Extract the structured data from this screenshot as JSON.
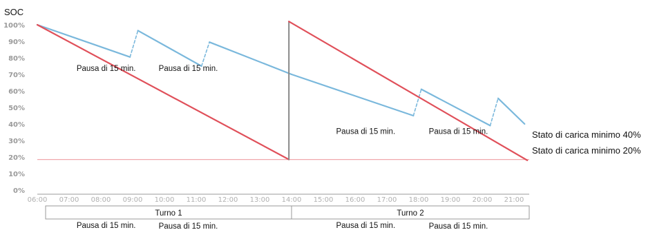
{
  "chart_data": {
    "type": "line",
    "title": "",
    "ylabel": "SOC",
    "xlabel": "",
    "ylim": [
      0,
      100
    ],
    "yticks": [
      "0%",
      "10%",
      "20%",
      "30%",
      "40%",
      "50%",
      "60%",
      "70%",
      "80%",
      "90%",
      "100%"
    ],
    "xticks": [
      "06:00",
      "07:00",
      "08:00",
      "09:00",
      "10:00",
      "11:00",
      "12:00",
      "13:00",
      "14:00",
      "15:00",
      "16:00",
      "17:00",
      "18:00",
      "19:00",
      "20:00",
      "21:00"
    ],
    "x_range": [
      "06:00",
      "21:30"
    ],
    "colors": {
      "with_pauses": "#7ab8dc",
      "continuous": "#e0505a",
      "min_line": "#f0a8ac",
      "axis": "#999999",
      "grid": "#cccccc"
    },
    "series": [
      {
        "name": "",
        "color": "#7ab8dc",
        "points": [
          [
            "06:00",
            100
          ],
          [
            "08:55",
            80.5
          ],
          [
            "09:10",
            96.5
          ],
          [
            "11:10",
            75
          ],
          [
            "11:25",
            89.5
          ],
          [
            "14:00",
            70
          ],
          [
            "17:50",
            45
          ],
          [
            "18:05",
            61
          ],
          [
            "20:15",
            39
          ],
          [
            "20:30",
            55.5
          ],
          [
            "21:20",
            40
          ]
        ],
        "dashed_segments": [
          [
            1,
            2
          ],
          [
            3,
            4
          ],
          [
            6,
            7
          ],
          [
            8,
            9
          ]
        ]
      },
      {
        "name": "",
        "color": "#e0505a",
        "points": [
          [
            "06:00",
            100
          ],
          [
            "13:55",
            18.5
          ],
          [
            "13:55",
            102
          ],
          [
            "21:25",
            18
          ]
        ]
      }
    ],
    "reference_line": {
      "y": 18.5,
      "color": "#f0a8ac"
    },
    "side_labels": [
      "Stato di carica minimo 40%",
      "Stato di carica minimo 20%"
    ],
    "annotations": [
      {
        "text": "Pausa di 15 min.",
        "x": "08:10",
        "y": 72
      },
      {
        "text": "Pausa di 15 min.",
        "x": "10:45",
        "y": 72
      },
      {
        "text": "Pausa di 15 min.",
        "x": "16:20",
        "y": 34
      },
      {
        "text": "Pausa di 15 min.",
        "x": "19:15",
        "y": 34
      }
    ],
    "shifts": [
      {
        "label": "Turno 1",
        "start": "06:00",
        "end": "14:00"
      },
      {
        "label": "Turno 2",
        "start": "14:00",
        "end": "21:30"
      }
    ],
    "bottom_labels": [
      {
        "text": "Pausa di 15 min.",
        "x": "08:10"
      },
      {
        "text": "Pausa di 15 min.",
        "x": "10:45"
      },
      {
        "text": "Pausa di 15 min.",
        "x": "16:20"
      },
      {
        "text": "Pausa di 15 min.",
        "x": "19:15"
      }
    ]
  }
}
